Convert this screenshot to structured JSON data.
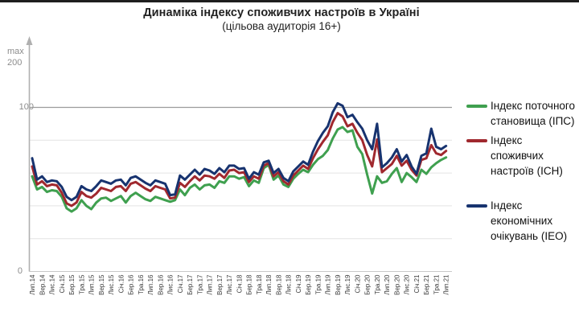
{
  "title": "Динаміка індексу споживчих настроїв в Україні",
  "subtitle": "(цільова аудиторія 16+)",
  "y_axis": {
    "max_label": "max",
    "max_value_label": "200",
    "mid_label": "100",
    "zero_label": "0"
  },
  "legend": {
    "items": [
      {
        "label": "Індекс поточного становища (ІПС)",
        "color": "#3fa04f"
      },
      {
        "label": "Індекс споживчих настроїв (ІСН)",
        "color": "#a0282e"
      },
      {
        "label": "Індекс економічних очікувань (ІЕО)",
        "color": "#17336f"
      }
    ]
  },
  "chart_data": {
    "type": "line",
    "title": "Динаміка індексу споживчих настроїв в Україні",
    "subtitle": "(цільова аудиторія 16+)",
    "ylim": [
      0,
      200
    ],
    "y_gridlines": [
      20,
      40,
      60,
      80,
      100
    ],
    "grid": "horizontal",
    "legend_position": "right",
    "x_frequency": "monthly",
    "x_tick_step_months": 2,
    "categories": [
      "Лип.14",
      "Вер.14",
      "Лис.14",
      "Січ.15",
      "Бер.15",
      "Тра.15",
      "Лип.15",
      "Вер.15",
      "Лис.15",
      "Січ.16",
      "Бер.16",
      "Тра.16",
      "Лип.16",
      "Вер.16",
      "Лис.16",
      "Січ.17",
      "Бер.17",
      "Тра.17",
      "Лип.17",
      "Вер.17",
      "Лис.17",
      "Січ.18",
      "Бер.18",
      "Тра.18",
      "Лип.18",
      "Вер.18",
      "Лис.18",
      "Січ.19",
      "Бер.19",
      "Тра.19",
      "Лип.19",
      "Вер.19",
      "Лис.19",
      "Січ.20",
      "Бер.20",
      "Тра.20",
      "Лип.20",
      "Вер.20",
      "Лис.20",
      "Січ.21",
      "Бер.21",
      "Тра.21",
      "Лип.21"
    ],
    "series": [
      {
        "name": "Індекс поточного становища (ІПС)",
        "color": "#3fa04f",
        "values": [
          58,
          50,
          51.5,
          48.5,
          49.5,
          49,
          45.5,
          38.5,
          36.5,
          38.5,
          43.5,
          40,
          38,
          42,
          44.5,
          45,
          43,
          44.5,
          46,
          42,
          46,
          48,
          46,
          44,
          43,
          45.5,
          44.5,
          43.5,
          42.5,
          43.5,
          50,
          46.5,
          51,
          53,
          50,
          52.5,
          53,
          51,
          55,
          54,
          58,
          58,
          56.5,
          57.5,
          52,
          55.5,
          54,
          63,
          65,
          56,
          58.5,
          53,
          51.5,
          56.5,
          59.5,
          62,
          60.5,
          65,
          68.5,
          70.5,
          74,
          81,
          86.5,
          88,
          85,
          86,
          76,
          71.5,
          59,
          47.5,
          58,
          54,
          55,
          59.5,
          63,
          54.5,
          60,
          57.5,
          54.5,
          62,
          59.5,
          63.5,
          66,
          68,
          69.5
        ]
      },
      {
        "name": "Індекс споживчих настроїв (ІСН)",
        "color": "#a0282e",
        "values": [
          64,
          53,
          55,
          52,
          53,
          52.5,
          48,
          41.5,
          40,
          42,
          48.5,
          46,
          45,
          47.5,
          51,
          50,
          49,
          51.5,
          52,
          49,
          53.5,
          54.5,
          52.5,
          50.5,
          49,
          52,
          51,
          50,
          44.5,
          45,
          54,
          51.5,
          55,
          58,
          55.5,
          58.5,
          58,
          56.5,
          59.5,
          57,
          61.5,
          62,
          60,
          60.5,
          54.5,
          58,
          56.5,
          64.5,
          66,
          58,
          60.5,
          55,
          53,
          58.5,
          61.5,
          64.5,
          62.5,
          69,
          74.5,
          79,
          83,
          91,
          96.5,
          94.5,
          88.5,
          90,
          84.5,
          80,
          71,
          64,
          80.5,
          60.5,
          63,
          65.5,
          70.5,
          64.5,
          67.5,
          62,
          58.5,
          68,
          69,
          77,
          72,
          71,
          73.5
        ]
      },
      {
        "name": "Індекс економічних очікувань (ІЕО)",
        "color": "#17336f",
        "values": [
          69,
          56,
          58,
          54.5,
          55.5,
          55,
          51.5,
          45.5,
          43.5,
          45.5,
          52,
          50,
          49,
          52,
          55.5,
          54.5,
          53.5,
          55.5,
          56,
          52.5,
          57,
          58,
          56,
          54,
          52.5,
          55.5,
          54.5,
          53.5,
          46.5,
          47,
          58.5,
          56,
          59,
          62,
          59,
          62.5,
          61.5,
          59.5,
          63,
          60.5,
          64.5,
          64.5,
          62.5,
          63,
          56.5,
          60.5,
          59,
          66.5,
          67.5,
          60,
          62.5,
          57,
          55,
          61,
          64,
          67,
          65,
          73,
          79.5,
          84.5,
          88.5,
          97,
          102.5,
          101,
          94,
          95.5,
          91,
          87,
          80,
          74.5,
          90,
          63.5,
          66,
          69.5,
          74.5,
          67,
          71,
          64,
          59.5,
          70.5,
          72,
          87,
          76,
          74.5,
          76.5
        ]
      }
    ]
  }
}
